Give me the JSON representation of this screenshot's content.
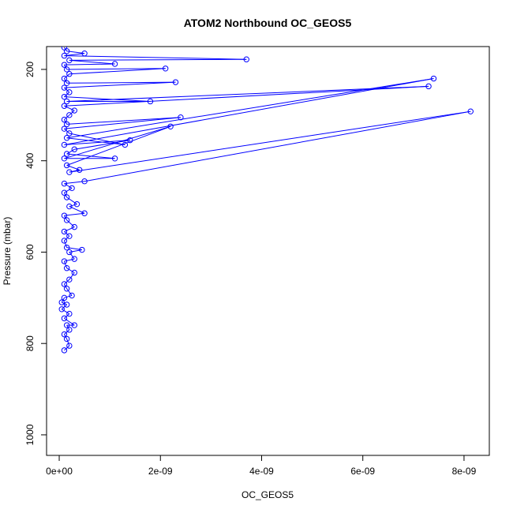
{
  "chart_data": {
    "type": "line",
    "title": "ATOM2 Northbound OC_GEOS5",
    "xlabel": "OC_GEOS5",
    "ylabel": "Pressure (mbar)",
    "xlim": [
      -2.5e-10,
      8.5e-09
    ],
    "ylim": [
      1045,
      150
    ],
    "y_reversed": true,
    "grid": false,
    "marker": "open-circle",
    "colors": {
      "series": "#0000ff",
      "axis": "#000000"
    },
    "x_ticks": [
      {
        "value": 0,
        "label": "0e+00"
      },
      {
        "value": 2e-09,
        "label": "2e-09"
      },
      {
        "value": 4e-09,
        "label": "4e-09"
      },
      {
        "value": 6e-09,
        "label": "6e-09"
      },
      {
        "value": 8e-09,
        "label": "8e-09"
      }
    ],
    "y_ticks": [
      {
        "value": 200,
        "label": "200"
      },
      {
        "value": 400,
        "label": "400"
      },
      {
        "value": 600,
        "label": "600"
      },
      {
        "value": 800,
        "label": "800"
      },
      {
        "value": 1000,
        "label": "1000"
      }
    ],
    "series": [
      {
        "points": [
          [
            1e-10,
            815
          ],
          [
            2e-10,
            805
          ],
          [
            1.5e-10,
            790
          ],
          [
            1e-10,
            780
          ],
          [
            2e-10,
            770
          ],
          [
            1.5e-10,
            760
          ],
          [
            3e-10,
            760
          ],
          [
            1e-10,
            745
          ],
          [
            2e-10,
            735
          ],
          [
            5e-11,
            725
          ],
          [
            1.5e-10,
            715
          ],
          [
            5e-11,
            710
          ],
          [
            1e-10,
            700
          ],
          [
            2.5e-10,
            695
          ],
          [
            1.5e-10,
            680
          ],
          [
            1e-10,
            670
          ],
          [
            2e-10,
            660
          ],
          [
            3e-10,
            645
          ],
          [
            1.5e-10,
            635
          ],
          [
            1e-10,
            620
          ],
          [
            3e-10,
            615
          ],
          [
            2e-10,
            600
          ],
          [
            4.5e-10,
            595
          ],
          [
            1.5e-10,
            590
          ],
          [
            1e-10,
            575
          ],
          [
            2e-10,
            565
          ],
          [
            1e-10,
            555
          ],
          [
            3e-10,
            545
          ],
          [
            1.5e-10,
            530
          ],
          [
            1e-10,
            520
          ],
          [
            5e-10,
            515
          ],
          [
            2e-10,
            500
          ],
          [
            3.5e-10,
            495
          ],
          [
            1.5e-10,
            480
          ],
          [
            1e-10,
            470
          ],
          [
            2.5e-10,
            460
          ],
          [
            1e-10,
            450
          ],
          [
            5e-10,
            445
          ],
          [
            8.13e-09,
            292
          ],
          [
            2e-10,
            425
          ],
          [
            4e-10,
            420
          ],
          [
            1.5e-10,
            410
          ],
          [
            2.2e-09,
            325
          ],
          [
            1e-10,
            395
          ],
          [
            1.1e-09,
            395
          ],
          [
            1.5e-10,
            385
          ],
          [
            3e-10,
            375
          ],
          [
            1.4e-09,
            355
          ],
          [
            1e-10,
            365
          ],
          [
            7.4e-09,
            220
          ],
          [
            1.5e-10,
            350
          ],
          [
            1.3e-09,
            365
          ],
          [
            2e-10,
            340
          ],
          [
            1e-10,
            330
          ],
          [
            2.4e-09,
            305
          ],
          [
            1.5e-10,
            320
          ],
          [
            1e-10,
            310
          ],
          [
            2e-10,
            300
          ],
          [
            3e-10,
            290
          ],
          [
            1e-10,
            280
          ],
          [
            7.3e-09,
            237
          ],
          [
            1.5e-10,
            270
          ],
          [
            1.8e-09,
            270
          ],
          [
            1e-10,
            260
          ],
          [
            2e-10,
            250
          ],
          [
            1e-10,
            240
          ],
          [
            2.3e-09,
            228
          ],
          [
            1.5e-10,
            230
          ],
          [
            1e-10,
            220
          ],
          [
            2e-10,
            210
          ],
          [
            2.1e-09,
            198
          ],
          [
            1.5e-10,
            200
          ],
          [
            1e-10,
            190
          ],
          [
            1.1e-09,
            188
          ],
          [
            2e-10,
            180
          ],
          [
            3.7e-09,
            178
          ],
          [
            1e-10,
            170
          ],
          [
            5e-10,
            165
          ],
          [
            1.5e-10,
            160
          ],
          [
            1e-10,
            152
          ]
        ]
      }
    ]
  }
}
